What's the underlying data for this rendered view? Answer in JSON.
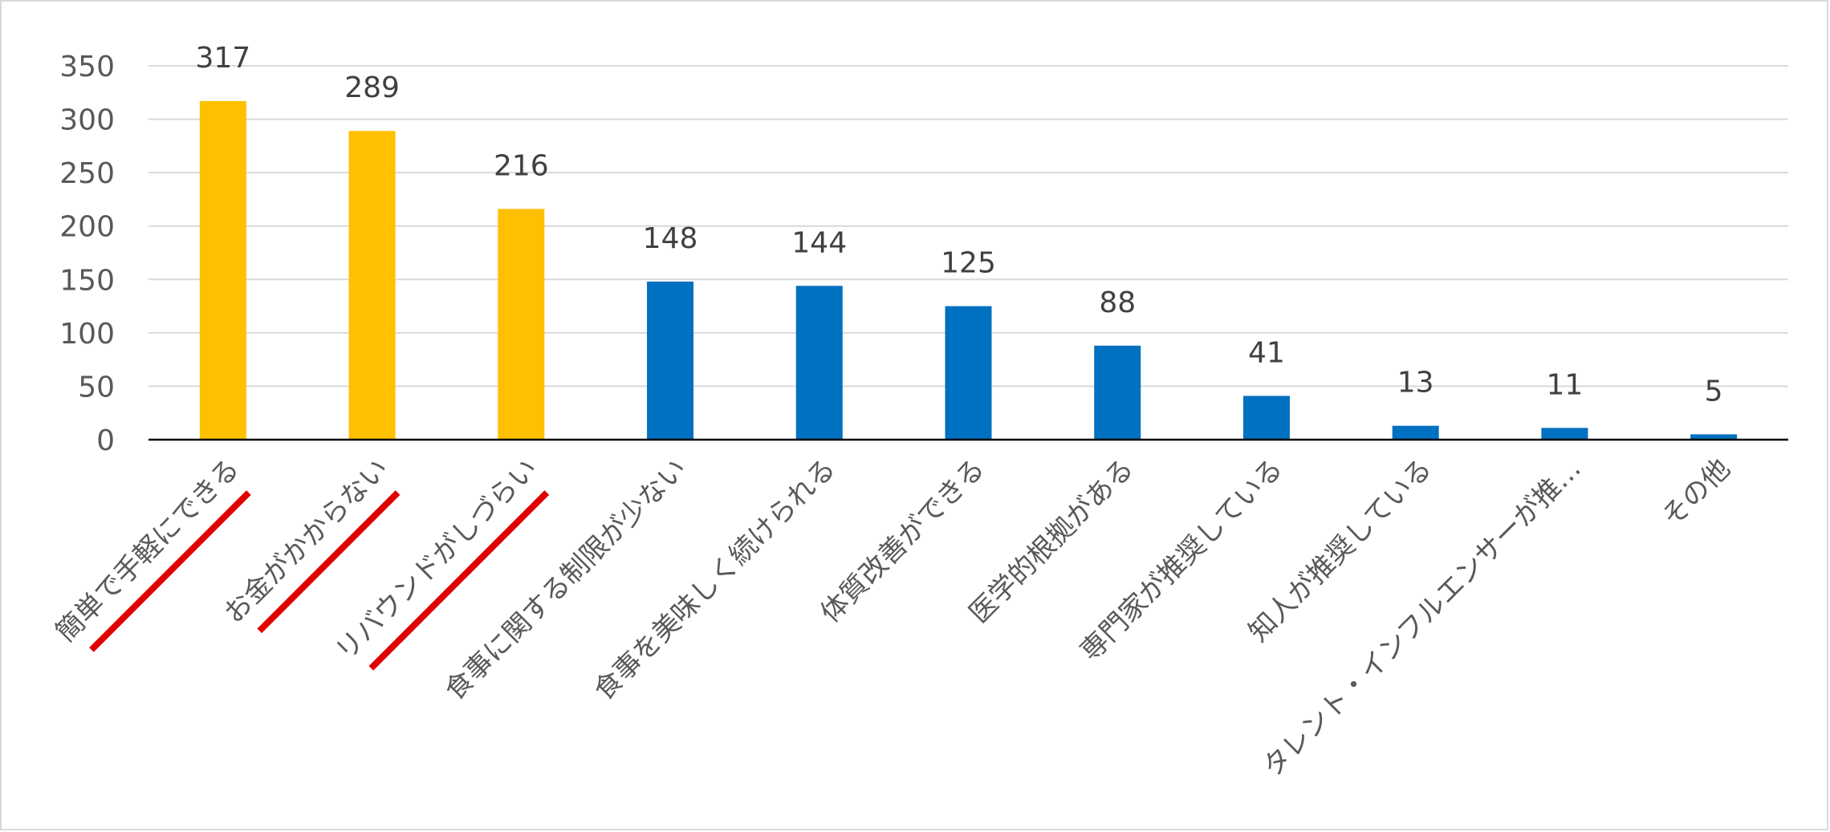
{
  "chart_data": {
    "type": "bar",
    "title": "",
    "xlabel": "",
    "ylabel": "",
    "ylim": [
      0,
      350
    ],
    "yticks": [
      0,
      50,
      100,
      150,
      200,
      250,
      300,
      350
    ],
    "grid": true,
    "legend": "none",
    "categories": [
      "簡単で手軽にできる",
      "お金がかからない",
      "リバウンドがしづらい",
      "食事に関する制限が少ない",
      "食事を美味しく続けられる",
      "体質改善ができる",
      "医学的根拠がある",
      "専門家が推奨している",
      "知人が推奨している",
      "タレント・インフルエンサーが推…",
      "その他"
    ],
    "values": [
      317,
      289,
      216,
      148,
      144,
      125,
      88,
      41,
      13,
      11,
      5
    ],
    "highlighted_categories": [
      "簡単で手軽にできる",
      "お金がかからない",
      "リバウンドがしづらい"
    ],
    "annotations": "red underline strokes under the three highlighted category labels"
  },
  "colors": {
    "highlight_bar": "#FFC000",
    "normal_bar": "#0070C0",
    "gridline": "#d9d9d9",
    "axis": "#000000",
    "underline": "#E00000"
  }
}
